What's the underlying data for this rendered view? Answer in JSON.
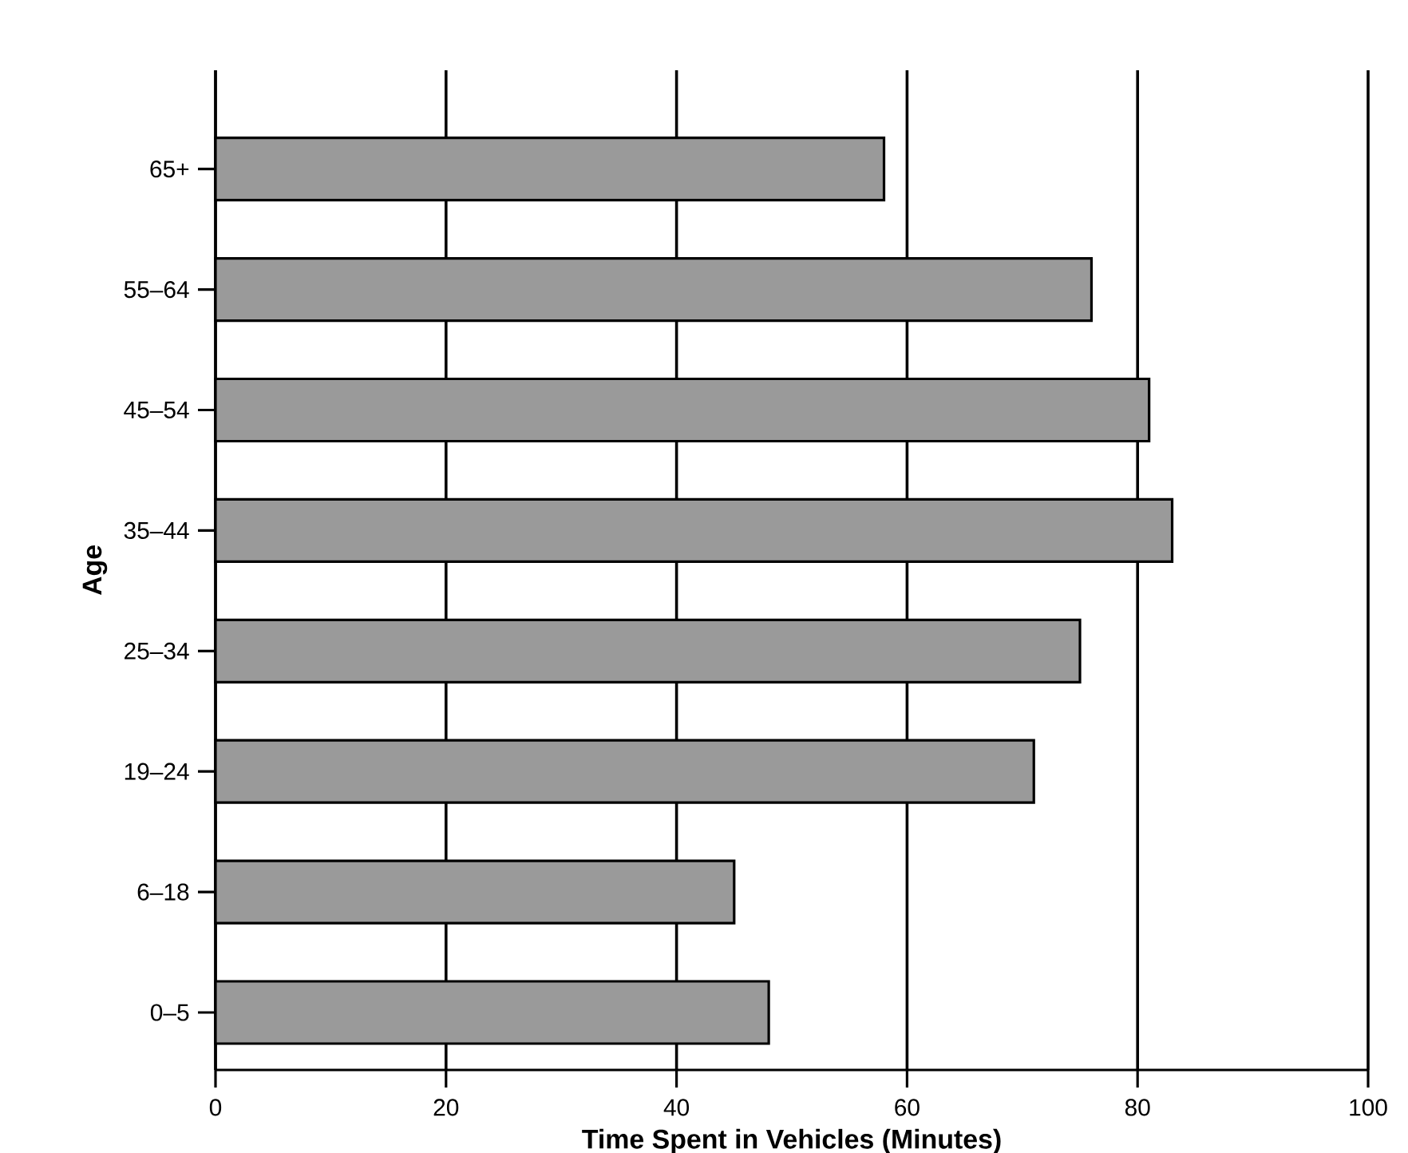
{
  "chart_data": {
    "type": "bar",
    "orientation": "horizontal",
    "xlabel": "Time Spent in Vehicles (Minutes)",
    "ylabel": "Age",
    "categories": [
      "65+",
      "55–64",
      "45–54",
      "35–44",
      "25–34",
      "19–24",
      "6–18",
      "0–5"
    ],
    "values": [
      58,
      76,
      81,
      83,
      75,
      71,
      45,
      48
    ],
    "color": "#9a9a9a",
    "xlim": [
      0,
      100
    ],
    "xticks": [
      0,
      20,
      40,
      60,
      80,
      100
    ],
    "grid": "x"
  }
}
